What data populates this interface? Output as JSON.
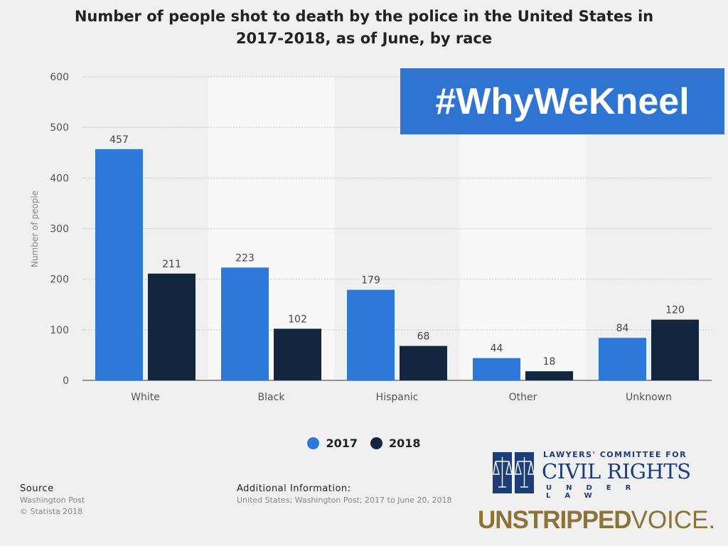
{
  "header": {
    "title_line1": "Number of people shot to death by the police in the United States in",
    "title_line2": "2017-2018, as of June, by race"
  },
  "overlay": {
    "hashtag": "#WhyWeKneel"
  },
  "chart_data": {
    "type": "bar",
    "categories": [
      "White",
      "Black",
      "Hispanic",
      "Other",
      "Unknown"
    ],
    "series": [
      {
        "name": "2017",
        "color": "#2e78d9",
        "values": [
          457,
          223,
          179,
          44,
          84
        ]
      },
      {
        "name": "2018",
        "color": "#12263d",
        "values": [
          211,
          102,
          68,
          18,
          120
        ]
      }
    ],
    "ylabel": "Number of people",
    "xlabel": "",
    "ylim": [
      0,
      600
    ],
    "yticks": [
      0,
      100,
      200,
      300,
      400,
      500,
      600
    ],
    "grid": true,
    "legend_position": "bottom-center"
  },
  "footer": {
    "source_heading": "Source",
    "source_line1": "Washington Post",
    "source_line2": "© Statista 2018",
    "additional_heading": "Additional Information:",
    "additional_text": "United States; Washington Post; 2017 to June 20, 2018"
  },
  "branding": {
    "lawyers_top": "LAWYERS' COMMITTEE FOR",
    "lawyers_mid": "CIVIL RIGHTS",
    "lawyers_bottom": "UNDER LAW",
    "unstripped_bold": "UNSTRIPPED",
    "unstripped_light": "VOICE."
  }
}
